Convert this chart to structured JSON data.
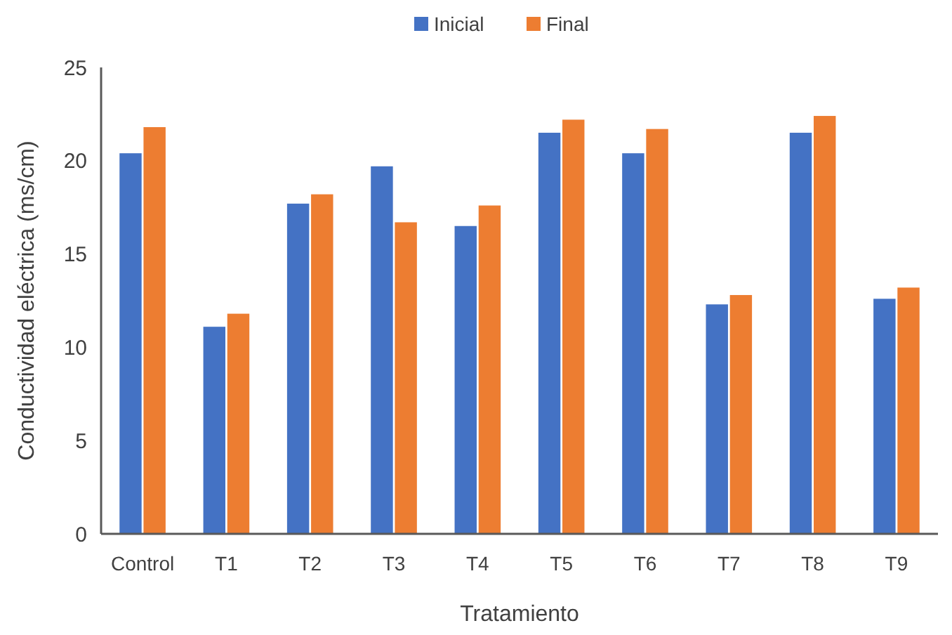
{
  "chart_data": {
    "type": "bar",
    "xlabel": "Tratamiento",
    "ylabel": "Conductividad eléctrica (ms/cm)",
    "categories": [
      "Control",
      "T1",
      "T2",
      "T3",
      "T4",
      "T5",
      "T6",
      "T7",
      "T8",
      "T9"
    ],
    "series": [
      {
        "name": "Inicial",
        "color": "#4472c4",
        "values": [
          20.4,
          11.1,
          17.7,
          19.7,
          16.5,
          21.5,
          20.4,
          12.3,
          21.5,
          12.6
        ]
      },
      {
        "name": "Final",
        "color": "#ed7d31",
        "values": [
          21.8,
          11.8,
          18.2,
          16.7,
          17.6,
          22.2,
          21.7,
          12.8,
          22.4,
          13.2
        ]
      }
    ],
    "ylim": [
      0,
      25
    ],
    "yticks": [
      0,
      5,
      10,
      15,
      20,
      25
    ],
    "legend": "top"
  }
}
